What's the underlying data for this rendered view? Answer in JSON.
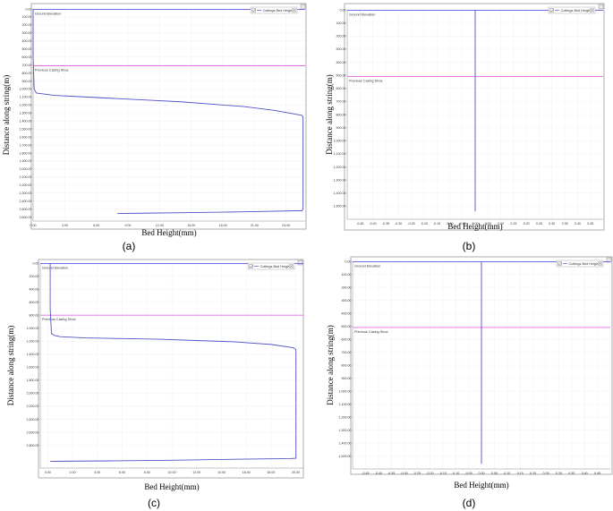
{
  "chart_data": [
    {
      "id": "a",
      "type": "line",
      "caption": "(a)",
      "xlabel": "Bed Height(mm)",
      "ylabel": "Distance along string(m)",
      "xlim": [
        0,
        25.8
      ],
      "ylim": [
        0,
        2650
      ],
      "x_ticks": [
        "0.00",
        "3.00",
        "6.00",
        "9.00",
        "12.00",
        "15.00",
        "18.00",
        "21.00",
        "24.00"
      ],
      "x_tick_values": [
        0,
        3,
        6,
        9,
        12,
        15,
        18,
        21,
        24
      ],
      "y_ticks": [
        "0.00",
        "100.00",
        "200.00",
        "300.00",
        "400.00",
        "500.00",
        "600.00",
        "700.00",
        "800.00",
        "900.00",
        "1,000.00",
        "1,100.00",
        "1,200.00",
        "1,300.00",
        "1,400.00",
        "1,500.00",
        "1,600.00",
        "1,700.00",
        "1,800.00",
        "1,900.00",
        "2,000.00",
        "2,100.00",
        "2,200.00",
        "2,300.00",
        "2,400.00",
        "2,500.00",
        "2,600.00"
      ],
      "y_tick_values": [
        0,
        100,
        200,
        300,
        400,
        500,
        600,
        700,
        800,
        900,
        1000,
        1100,
        1200,
        1300,
        1400,
        1500,
        1600,
        1700,
        1800,
        1900,
        2000,
        2100,
        2200,
        2300,
        2400,
        2500,
        2600
      ],
      "hlines": [
        {
          "label": "Ground Elevation",
          "y": 0,
          "color": "#5a5ae6"
        },
        {
          "label": "Previous Casing Shoe",
          "y": 710,
          "color": "#e66ae6"
        }
      ],
      "legend": {
        "label": "Cuttings Bed Height",
        "position": "top-right"
      },
      "series": [
        {
          "color": "#5252c8",
          "x": [
            0,
            0,
            0.1,
            0.3,
            2,
            5,
            8,
            11,
            14,
            17,
            20,
            23,
            25.5,
            25.6,
            25.6,
            25.5,
            20,
            15,
            10,
            8
          ],
          "y": [
            0,
            600,
            1000,
            1050,
            1080,
            1100,
            1120,
            1140,
            1160,
            1190,
            1220,
            1270,
            1330,
            1350,
            2500,
            2520,
            2535,
            2545,
            2552,
            2556
          ]
        }
      ]
    },
    {
      "id": "b",
      "type": "line",
      "caption": "(b)",
      "xlabel": "Bed Height(mm)",
      "ylabel": "Distance along string(m)",
      "xlim": [
        -0.5,
        0.5
      ],
      "ylim": [
        0,
        1600
      ],
      "x_ticks": [
        "-0.45",
        "-0.40",
        "-0.35",
        "-0.30",
        "-0.25",
        "-0.20",
        "-0.15",
        "-0.10",
        "-0.05",
        "0.00",
        "0.05",
        "0.10",
        "0.15",
        "0.20",
        "0.25",
        "0.30",
        "0.35",
        "0.40",
        "0.45"
      ],
      "x_tick_values": [
        -0.45,
        -0.4,
        -0.35,
        -0.3,
        -0.25,
        -0.2,
        -0.15,
        -0.1,
        -0.05,
        0,
        0.05,
        0.1,
        0.15,
        0.2,
        0.25,
        0.3,
        0.35,
        0.4,
        0.45
      ],
      "y_ticks": [
        "0.00",
        "100.00",
        "200.00",
        "300.00",
        "400.00",
        "500.00",
        "600.00",
        "700.00",
        "800.00",
        "900.00",
        "1,000.00",
        "1,100.00",
        "1,200.00",
        "1,300.00",
        "1,400.00",
        "1,500.00"
      ],
      "y_tick_values": [
        0,
        100,
        200,
        300,
        400,
        500,
        600,
        700,
        800,
        900,
        1000,
        1100,
        1200,
        1300,
        1400,
        1500
      ],
      "hlines": [
        {
          "label": "Ground Elevation",
          "y": 0,
          "color": "#5a5ae6"
        },
        {
          "label": "Previous Casing Shoe",
          "y": 510,
          "color": "#e66ae6"
        }
      ],
      "legend": {
        "label": "Cuttings Bed Height",
        "position": "top-right"
      },
      "series": [
        {
          "color": "#5252c8",
          "x": [
            0,
            0
          ],
          "y": [
            0,
            1540
          ]
        }
      ]
    },
    {
      "id": "c",
      "type": "line",
      "caption": "(c)",
      "xlabel": "Bed Height(mm)",
      "ylabel": "Distance along string(m)",
      "xlim": [
        -0.6,
        20.6
      ],
      "ylim": [
        0,
        3150
      ],
      "x_ticks": [
        "0.00",
        "2.00",
        "4.00",
        "6.00",
        "8.00",
        "10.00",
        "12.00",
        "14.00",
        "16.00",
        "18.00",
        "20.00"
      ],
      "x_tick_values": [
        0,
        2,
        4,
        6,
        8,
        10,
        12,
        14,
        16,
        18,
        20
      ],
      "y_ticks": [
        "0.00",
        "200.00",
        "400.00",
        "600.00",
        "800.00",
        "1,000.00",
        "1,200.00",
        "1,400.00",
        "1,600.00",
        "1,800.00",
        "2,000.00",
        "2,200.00",
        "2,400.00",
        "2,600.00",
        "2,800.00"
      ],
      "y_tick_values": [
        0,
        200,
        400,
        600,
        800,
        1000,
        1200,
        1400,
        1600,
        1800,
        2000,
        2200,
        2400,
        2600,
        2800
      ],
      "hlines": [
        {
          "label": "Ground Elevation",
          "y": 0,
          "color": "#5a5ae6"
        },
        {
          "label": "Previous Casing Shoe",
          "y": 800,
          "color": "#e66ae6"
        }
      ],
      "legend": {
        "label": "Cuttings Bed Height",
        "position": "top-right"
      },
      "series": [
        {
          "color": "#5252c8",
          "x": [
            0.2,
            0.2,
            0.3,
            0.5,
            1,
            3,
            6,
            9,
            12,
            15,
            18,
            19.8,
            20,
            20,
            19.5,
            15,
            10,
            5,
            1,
            0.2
          ],
          "y": [
            0,
            700,
            1080,
            1110,
            1130,
            1150,
            1160,
            1170,
            1190,
            1210,
            1250,
            1300,
            1330,
            3000,
            3005,
            3015,
            3030,
            3040,
            3045,
            3048
          ]
        }
      ]
    },
    {
      "id": "d",
      "type": "line",
      "caption": "(d)",
      "xlabel": "Bed Height(mm)",
      "ylabel": "Distance along string(m)",
      "xlim": [
        -0.5,
        0.5
      ],
      "ylim": [
        0,
        1600
      ],
      "x_ticks": [
        "-0.45",
        "-0.40",
        "-0.35",
        "-0.30",
        "-0.25",
        "-0.20",
        "-0.15",
        "-0.10",
        "-0.05",
        "0.00",
        "0.05",
        "0.10",
        "0.15",
        "0.20",
        "0.25",
        "0.30",
        "0.35",
        "0.40",
        "0.45"
      ],
      "x_tick_values": [
        -0.45,
        -0.4,
        -0.35,
        -0.3,
        -0.25,
        -0.2,
        -0.15,
        -0.1,
        -0.05,
        0,
        0.05,
        0.1,
        0.15,
        0.2,
        0.25,
        0.3,
        0.35,
        0.4,
        0.45
      ],
      "y_ticks": [
        "0.00",
        "100.00",
        "200.00",
        "300.00",
        "400.00",
        "500.00",
        "600.00",
        "700.00",
        "800.00",
        "900.00",
        "1,000.00",
        "1,100.00",
        "1,200.00",
        "1,300.00",
        "1,400.00",
        "1,500.00"
      ],
      "y_tick_values": [
        0,
        100,
        200,
        300,
        400,
        500,
        600,
        700,
        800,
        900,
        1000,
        1100,
        1200,
        1300,
        1400,
        1500
      ],
      "hlines": [
        {
          "label": "Ground Elevation",
          "y": 0,
          "color": "#5a5ae6"
        },
        {
          "label": "Previous Casing Shoe",
          "y": 510,
          "color": "#e66ae6"
        }
      ],
      "legend": {
        "label": "Cuttings Bed Height",
        "position": "top-right"
      },
      "series": [
        {
          "color": "#5252c8",
          "x": [
            0,
            0
          ],
          "y": [
            0,
            1560
          ]
        }
      ]
    }
  ]
}
